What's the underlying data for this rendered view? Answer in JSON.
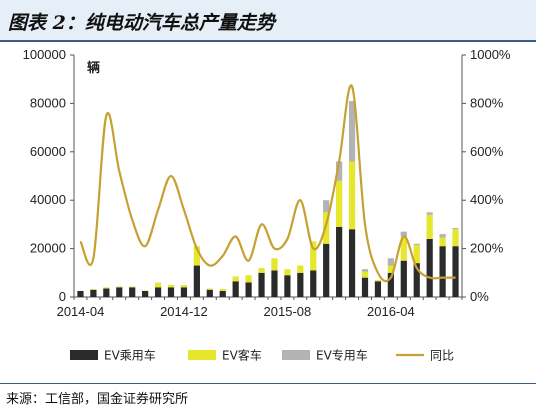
{
  "chart_title": "图表 2：纯电动汽车总产量走势",
  "source": "来源：工信部，国金证券研究所",
  "chart_data": {
    "type": "bar",
    "stacked": true,
    "unit_label": "辆",
    "x_tick_labels": [
      "2014-04",
      "2014-12",
      "2015-08",
      "2016-04"
    ],
    "categories": [
      "2014-04",
      "2014-05",
      "2014-06",
      "2014-07",
      "2014-08",
      "2014-09",
      "2014-10",
      "2014-11",
      "2014-12",
      "2015-01",
      "2015-02",
      "2015-03",
      "2015-04",
      "2015-05",
      "2015-06",
      "2015-07",
      "2015-08",
      "2015-09",
      "2015-10",
      "2015-11",
      "2015-12",
      "2016-01",
      "2016-02",
      "2016-03",
      "2016-04",
      "2016-05",
      "2016-06",
      "2016-07",
      "2016-08",
      "2016-09"
    ],
    "ylim_left": [
      0,
      100000
    ],
    "y_ticks_left": [
      "0",
      "20000",
      "40000",
      "60000",
      "80000",
      "100000"
    ],
    "ylim_right": [
      0,
      1000
    ],
    "y_ticks_right": [
      "0%",
      "200%",
      "400%",
      "600%",
      "800%",
      "1000%"
    ],
    "series": [
      {
        "name": "EV乘用车",
        "color": "#2b2b2b",
        "axis": "left",
        "values": [
          2500,
          3000,
          3500,
          4000,
          4000,
          2500,
          4000,
          4000,
          4000,
          13000,
          3000,
          2500,
          6500,
          6000,
          10000,
          11000,
          9000,
          10000,
          11000,
          22000,
          29000,
          28000,
          8000,
          6500,
          10000,
          15000,
          14000,
          24000,
          21000,
          21000
        ]
      },
      {
        "name": "EV客车",
        "color": "#e6e62c",
        "axis": "left",
        "values": [
          0,
          200,
          500,
          300,
          300,
          200,
          2000,
          1000,
          1000,
          8000,
          500,
          800,
          2000,
          3000,
          2000,
          5000,
          2500,
          3000,
          12000,
          13000,
          19000,
          28000,
          2500,
          500,
          3000,
          10000,
          7500,
          10000,
          3500,
          7000
        ]
      },
      {
        "name": "EV专用车",
        "color": "#b3b3b3",
        "axis": "left",
        "values": [
          0,
          0,
          0,
          0,
          0,
          0,
          0,
          0,
          0,
          0,
          0,
          0,
          0,
          0,
          0,
          0,
          0,
          0,
          0,
          5000,
          8000,
          25000,
          1000,
          0,
          3000,
          2000,
          500,
          1000,
          1500,
          500
        ]
      },
      {
        "name": "同比",
        "color": "#c7a033",
        "axis": "right",
        "type": "line",
        "values": [
          230,
          160,
          750,
          520,
          320,
          210,
          360,
          500,
          360,
          200,
          130,
          170,
          250,
          150,
          300,
          200,
          240,
          400,
          200,
          300,
          560,
          870,
          300,
          100,
          80,
          250,
          120,
          80,
          80,
          80
        ]
      }
    ],
    "legend_position": "bottom",
    "grid": false
  }
}
